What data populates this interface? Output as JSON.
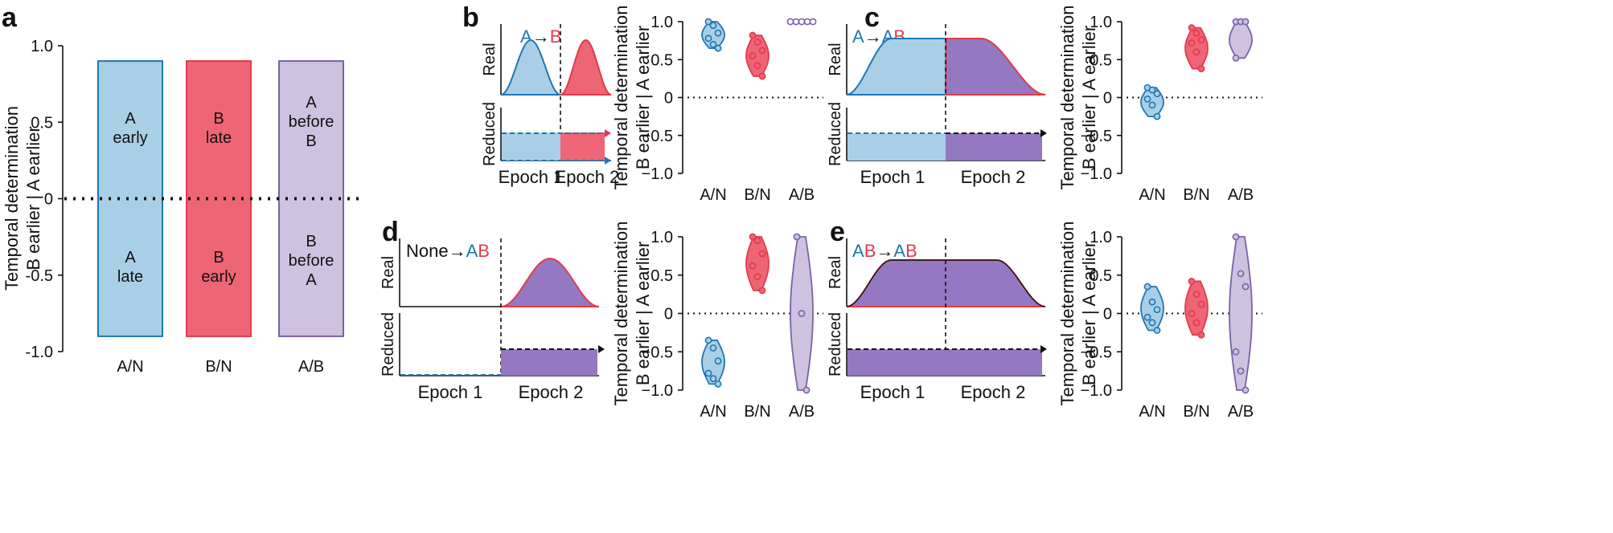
{
  "colors": {
    "A": "#1f77b4",
    "B": "#e23a4c",
    "AB": "#7b61a8",
    "A_fill": "#a9cfe6",
    "B_fill": "#ee6575",
    "AB_fill": "#9478c2",
    "AB_bar_fill": "#cec2e0"
  },
  "panel_a": {
    "label": "a",
    "ylabel_line1": "Temporal determination",
    "ylabel_line2": "B earlier | A earlier",
    "tick_labels": [
      "1.0",
      "0.5",
      "0",
      "-0.5",
      "-1.0"
    ],
    "categories": [
      "A/N",
      "B/N",
      "A/B"
    ],
    "bars": [
      {
        "upper_lines": [
          "A",
          "early"
        ],
        "lower_lines": [
          "A",
          "late"
        ]
      },
      {
        "upper_lines": [
          "B",
          "late"
        ],
        "lower_lines": [
          "B",
          "early"
        ]
      },
      {
        "upper_lines": [
          "A",
          "before",
          "B"
        ],
        "lower_lines": [
          "B",
          "before",
          "A"
        ]
      }
    ]
  },
  "chart_data": [
    {
      "type": "bar",
      "panel": "a",
      "categories": [
        "A/N",
        "B/N",
        "A/B"
      ],
      "values_upper": [
        0.9,
        0.9,
        0.9
      ],
      "values_lower": [
        -0.9,
        -0.9,
        -0.9
      ],
      "ylabel": "Temporal determination B earlier | A earlier",
      "ylim": [
        -1.0,
        1.0
      ]
    },
    {
      "type": "violin",
      "panel": "b",
      "categories": [
        "A/N",
        "B/N",
        "A/B"
      ],
      "points": [
        [
          1.0,
          0.95,
          0.85,
          0.78,
          0.7,
          0.65
        ],
        [
          0.82,
          0.73,
          0.62,
          0.55,
          0.42,
          0.28
        ],
        [
          1.0,
          1.0,
          1.0,
          1.0,
          1.0
        ]
      ],
      "ylim": [
        -1.0,
        1.0
      ]
    },
    {
      "type": "violin",
      "panel": "c",
      "categories": [
        "A/N",
        "B/N",
        "A/B"
      ],
      "points": [
        [
          0.13,
          0.1,
          0.05,
          -0.02,
          -0.1,
          -0.25
        ],
        [
          0.92,
          0.85,
          0.76,
          0.72,
          0.6,
          0.38
        ],
        [
          1.0,
          1.0,
          1.0,
          0.52
        ]
      ],
      "ylim": [
        -1.0,
        1.0
      ]
    },
    {
      "type": "violin",
      "panel": "d",
      "categories": [
        "A/N",
        "B/N",
        "A/B"
      ],
      "points": [
        [
          -0.35,
          -0.45,
          -0.62,
          -0.78,
          -0.85,
          -0.92
        ],
        [
          1.0,
          0.95,
          0.78,
          0.62,
          0.48,
          0.3
        ],
        [
          1.0,
          0.0,
          -1.0
        ]
      ],
      "ylim": [
        -1.0,
        1.0
      ]
    },
    {
      "type": "violin",
      "panel": "e",
      "categories": [
        "A/N",
        "B/N",
        "A/B"
      ],
      "points": [
        [
          0.35,
          0.15,
          0.05,
          -0.05,
          -0.12,
          -0.22
        ],
        [
          0.42,
          0.25,
          0.12,
          0.0,
          -0.12,
          -0.28
        ],
        [
          1.0,
          0.52,
          0.35,
          -0.5,
          -0.75,
          -1.0
        ]
      ],
      "ylim": [
        -1.0,
        1.0
      ]
    }
  ],
  "panels": {
    "b": {
      "label": "b",
      "title_parts": [
        "A",
        "→",
        "B"
      ],
      "title_colors": [
        "A",
        "black",
        "B"
      ]
    },
    "c": {
      "label": "c",
      "title_parts": [
        "A",
        "→",
        "A",
        "B"
      ],
      "title_colors": [
        "A",
        "black",
        "A",
        "B"
      ]
    },
    "d": {
      "label": "d",
      "title_parts": [
        "None",
        "→",
        "A",
        "B"
      ],
      "title_colors": [
        "black",
        "black",
        "A",
        "B"
      ]
    },
    "e": {
      "label": "e",
      "title_parts": [
        "A",
        "B",
        "→",
        "A",
        "B"
      ],
      "title_colors": [
        "A",
        "B",
        "black",
        "A",
        "B"
      ]
    }
  },
  "common": {
    "real_label": "Real",
    "reduced_label": "Reduced",
    "epoch1": "Epoch 1",
    "epoch2": "Epoch 2",
    "violin_ylabel_line1": "Temporal determination",
    "violin_ylabel_line2": "B earlier | A earlier",
    "violin_ticks": [
      "1.0",
      "0.5",
      "0",
      "−0.5",
      "−1.0"
    ],
    "violin_categories": [
      "A/N",
      "B/N",
      "A/B"
    ]
  }
}
